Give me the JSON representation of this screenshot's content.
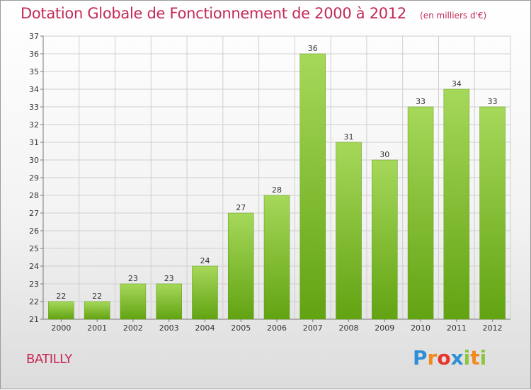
{
  "header": {
    "title": "Dotation Globale de Fonctionnement de 2000 à 2012",
    "subtitle": "(en milliers d'€)"
  },
  "commune": "BATILLY",
  "logo": {
    "text": "Proxiti",
    "letters": [
      {
        "ch": "P",
        "color": "#2f8fd6"
      },
      {
        "ch": "r",
        "color": "#f08a1c"
      },
      {
        "ch": "o",
        "color": "#e7352c"
      },
      {
        "ch": "x",
        "color": "#2f8fd6"
      },
      {
        "ch": "i",
        "color": "#8cc63e"
      },
      {
        "ch": "t",
        "color": "#f08a1c"
      },
      {
        "ch": "i",
        "color": "#8cc63e"
      }
    ]
  },
  "colors": {
    "title": "#c42a55",
    "bar_light": "#a6d85a",
    "bar_dark": "#62a312",
    "grid": "#cfcfcf"
  },
  "chart_data": {
    "type": "bar",
    "title": "Dotation Globale de Fonctionnement de 2000 à 2012",
    "subtitle": "(en milliers d'€)",
    "xlabel": "",
    "ylabel": "",
    "categories": [
      "2000",
      "2001",
      "2002",
      "2003",
      "2004",
      "2005",
      "2006",
      "2007",
      "2008",
      "2009",
      "2010",
      "2011",
      "2012"
    ],
    "values": [
      22,
      22,
      23,
      23,
      24,
      27,
      28,
      36,
      31,
      30,
      33,
      34,
      33
    ],
    "ylim": [
      21,
      37
    ],
    "yticks": [
      21,
      22,
      23,
      24,
      25,
      26,
      27,
      28,
      29,
      30,
      31,
      32,
      33,
      34,
      35,
      36,
      37
    ],
    "grid": true,
    "data_labels": true
  }
}
